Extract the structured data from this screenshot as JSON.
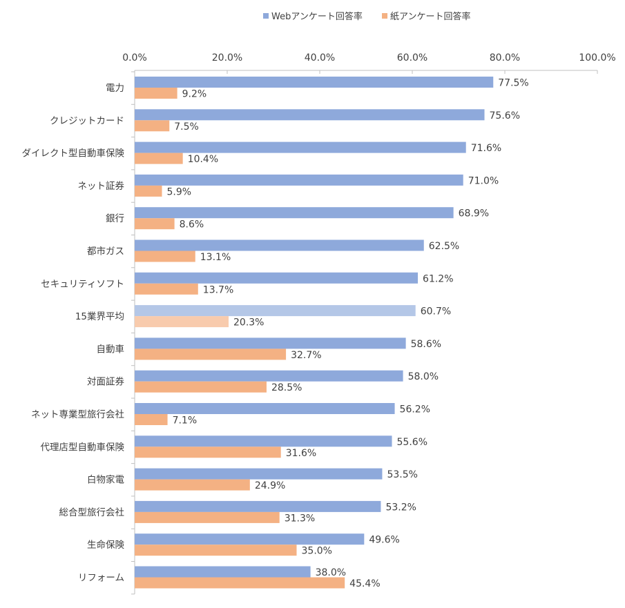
{
  "chart_data": {
    "type": "bar",
    "orientation": "horizontal",
    "legend_position": "top",
    "xlim": [
      0,
      100
    ],
    "x_ticks": [
      "0.0%",
      "20.0%",
      "40.0%",
      "60.0%",
      "80.0%",
      "100.0%"
    ],
    "x_tick_values": [
      0,
      20,
      40,
      60,
      80,
      100
    ],
    "categories": [
      "電力",
      "クレジットカード",
      "ダイレクト型自動車保険",
      "ネット証券",
      "銀行",
      "都市ガス",
      "セキュリティソフト",
      "15業界平均",
      "自動車",
      "対面証券",
      "ネット専業型旅行会社",
      "代理店型自動車保険",
      "白物家電",
      "総合型旅行会社",
      "生命保険",
      "リフォーム"
    ],
    "highlight_category": "15業界平均",
    "series": [
      {
        "name": "Webアンケート回答率",
        "color": "#8EA9DB",
        "highlight_color": "#B4C7E7",
        "values": [
          77.5,
          75.6,
          71.6,
          71.0,
          68.9,
          62.5,
          61.2,
          60.7,
          58.6,
          58.0,
          56.2,
          55.6,
          53.5,
          53.2,
          49.6,
          38.0
        ],
        "labels": [
          "77.5%",
          "75.6%",
          "71.6%",
          "71.0%",
          "68.9%",
          "62.5%",
          "61.2%",
          "60.7%",
          "58.6%",
          "58.0%",
          "56.2%",
          "55.6%",
          "53.5%",
          "53.2%",
          "49.6%",
          "38.0%"
        ]
      },
      {
        "name": "紙アンケート回答率",
        "color": "#F4B183",
        "highlight_color": "#F8CBAD",
        "values": [
          9.2,
          7.5,
          10.4,
          5.9,
          8.6,
          13.1,
          13.7,
          20.3,
          32.7,
          28.5,
          7.1,
          31.6,
          24.9,
          31.3,
          35.0,
          45.4
        ],
        "labels": [
          "9.2%",
          "7.5%",
          "10.4%",
          "5.9%",
          "8.6%",
          "13.1%",
          "13.7%",
          "20.3%",
          "32.7%",
          "28.5%",
          "7.1%",
          "31.6%",
          "24.9%",
          "31.3%",
          "35.0%",
          "45.4%"
        ]
      }
    ]
  }
}
